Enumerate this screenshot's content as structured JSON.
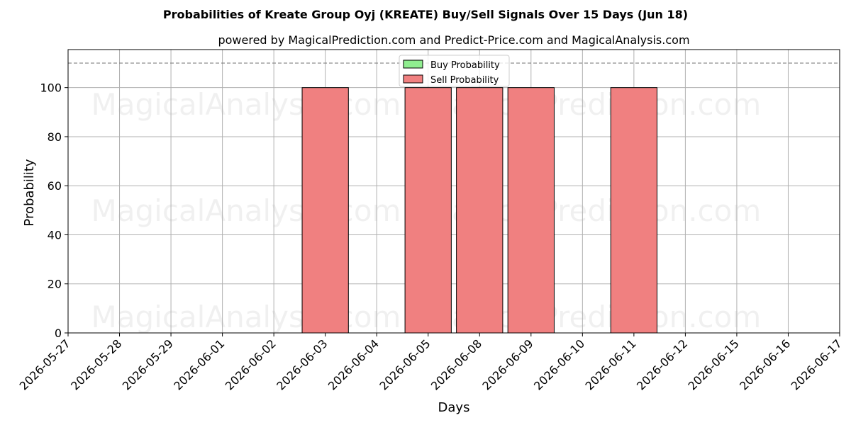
{
  "chart_data": {
    "type": "bar",
    "title": "Probabilities of Kreate Group Oyj (KREATE) Buy/Sell Signals Over 15 Days (Jun 18)",
    "subtitle": "powered by MagicalPrediction.com and Predict-Price.com and MagicalAnalysis.com",
    "xlabel": "Days",
    "ylabel": "Probability",
    "categories": [
      "2026-05-27",
      "2026-05-28",
      "2026-05-29",
      "2026-06-01",
      "2026-06-02",
      "2026-06-03",
      "2026-06-04",
      "2026-06-05",
      "2026-06-08",
      "2026-06-09",
      "2026-06-10",
      "2026-06-11",
      "2026-06-12",
      "2026-06-15",
      "2026-06-16",
      "2026-06-17"
    ],
    "series": [
      {
        "name": "Buy Probability",
        "color": "#90ee90",
        "values": [
          0,
          0,
          0,
          0,
          0,
          0,
          0,
          0,
          0,
          0,
          0,
          0,
          0,
          0,
          0,
          0
        ]
      },
      {
        "name": "Sell Probability",
        "color": "#f08080",
        "values": [
          0,
          0,
          0,
          0,
          0,
          100,
          0,
          100,
          100,
          100,
          0,
          100,
          0,
          0,
          0,
          0
        ]
      }
    ],
    "ylim": [
      0,
      115.5
    ],
    "yticks": [
      0,
      20,
      40,
      60,
      80,
      100
    ],
    "threshold_line": 110,
    "grid": true,
    "legend_placement": "top-center",
    "watermarks": [
      "MagicalAnalysis.com",
      "MagicalPrediction.com"
    ]
  }
}
